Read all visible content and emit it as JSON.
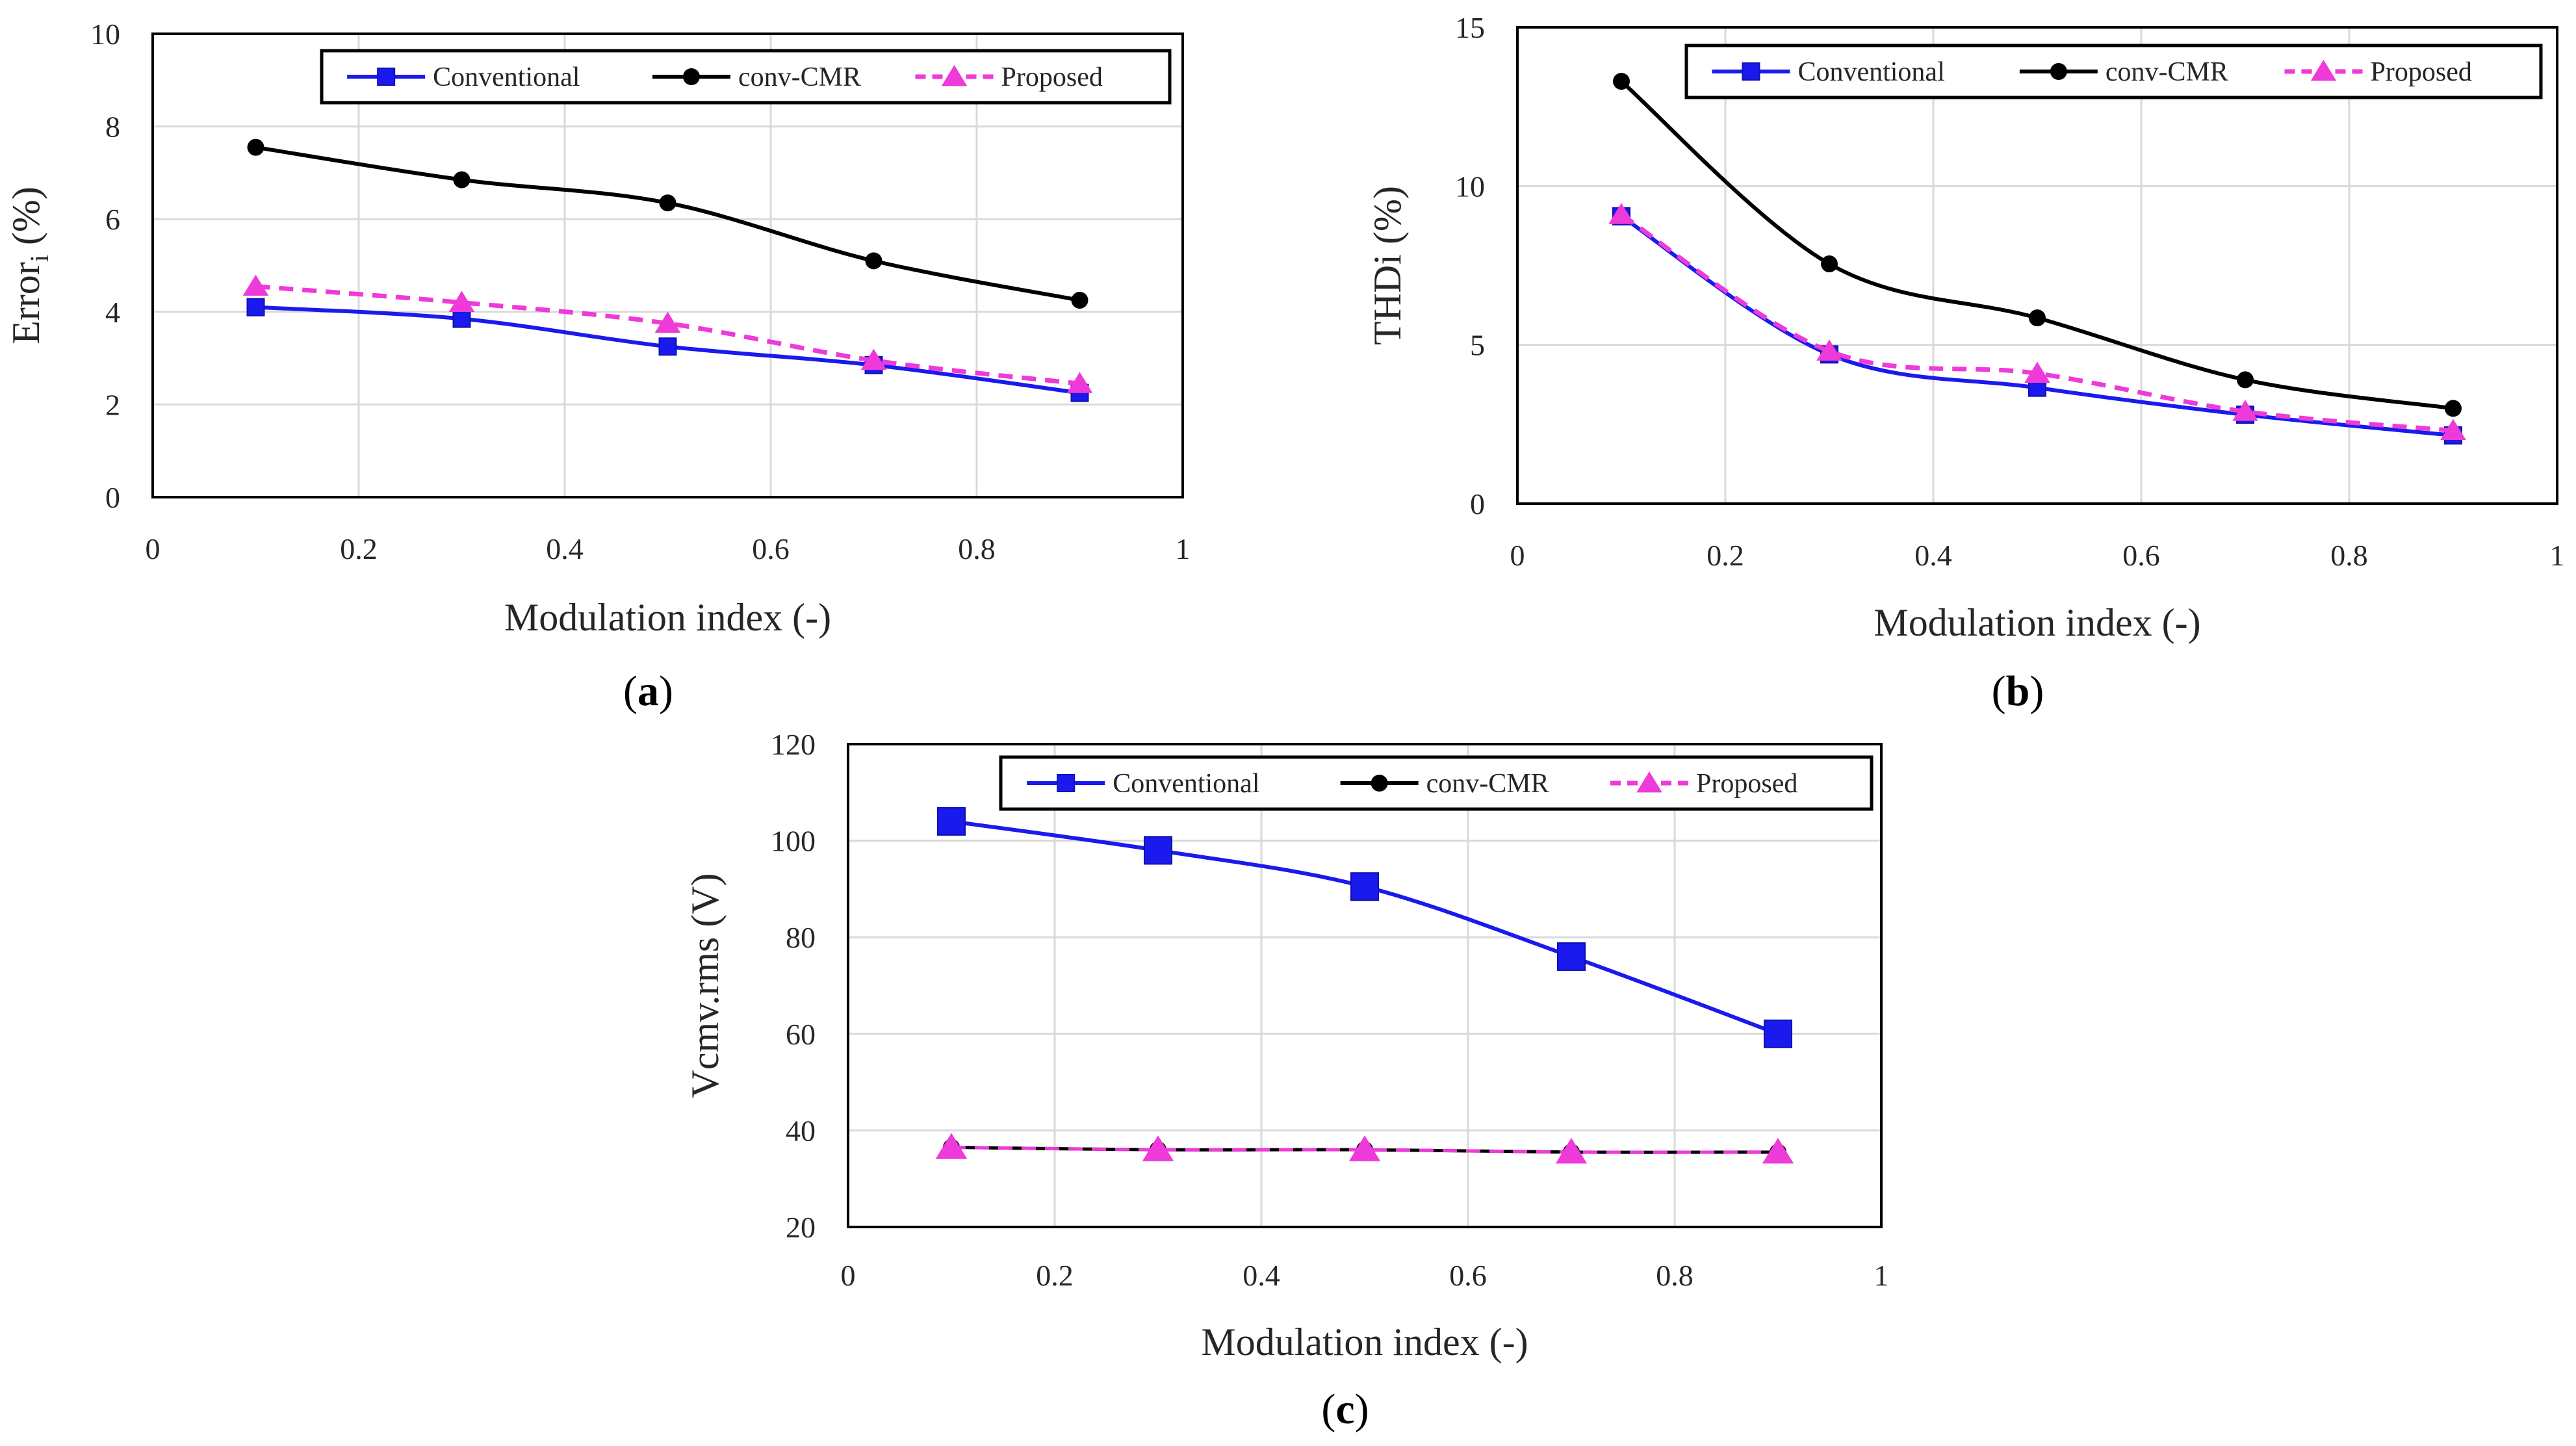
{
  "colors": {
    "conventional": "#1a1aee",
    "conv_cmr": "#000000",
    "proposed": "#ee3ad8",
    "grid": "#d9d9d9",
    "text": "#262626"
  },
  "chart_data": [
    {
      "id": "a",
      "type": "line",
      "panel_label": "a",
      "xlabel": "Modulation index (-)",
      "ylabel_main": "Error",
      "ylabel_sub": "i",
      "ylabel_suffix": " (%)",
      "xlim": [
        0,
        1
      ],
      "ylim": [
        0,
        10
      ],
      "xticks": [
        0,
        0.2,
        0.4,
        0.6,
        0.8,
        1
      ],
      "xtick_labels": [
        "0",
        "0.2",
        "0.4",
        "0.6",
        "0.8",
        "1"
      ],
      "yticks": [
        0,
        2,
        4,
        6,
        8,
        10
      ],
      "ytick_labels": [
        "0",
        "2",
        "4",
        "6",
        "8",
        "10"
      ],
      "grid": true,
      "legend_position": "top-right",
      "series": [
        {
          "name": "Conventional",
          "style": "conventional",
          "x": [
            0.1,
            0.3,
            0.5,
            0.7,
            0.9
          ],
          "y": [
            4.1,
            3.85,
            3.25,
            2.85,
            2.25
          ]
        },
        {
          "name": "conv-CMR",
          "style": "conv_cmr",
          "x": [
            0.1,
            0.3,
            0.5,
            0.7,
            0.9
          ],
          "y": [
            7.55,
            6.85,
            6.35,
            5.1,
            4.25
          ]
        },
        {
          "name": "Proposed",
          "style": "proposed",
          "x": [
            0.1,
            0.3,
            0.5,
            0.7,
            0.9
          ],
          "y": [
            4.55,
            4.2,
            3.75,
            2.95,
            2.45
          ]
        }
      ]
    },
    {
      "id": "b",
      "type": "line",
      "panel_label": "b",
      "xlabel": "Modulation index (-)",
      "ylabel_main": "THDi (%)",
      "ylabel_sub": "",
      "ylabel_suffix": "",
      "xlim": [
        0,
        1
      ],
      "ylim": [
        0,
        15
      ],
      "xticks": [
        0,
        0.2,
        0.4,
        0.6,
        0.8,
        1
      ],
      "xtick_labels": [
        "0",
        "0.2",
        "0.4",
        "0.6",
        "0.8",
        "1"
      ],
      "yticks": [
        0,
        5,
        10,
        15
      ],
      "ytick_labels": [
        "0",
        "5",
        "10",
        "15"
      ],
      "grid": true,
      "legend_position": "top-right",
      "series": [
        {
          "name": "Conventional",
          "style": "conventional",
          "x": [
            0.1,
            0.3,
            0.5,
            0.7,
            0.9
          ],
          "y": [
            9.05,
            4.7,
            3.65,
            2.8,
            2.15
          ]
        },
        {
          "name": "conv-CMR",
          "style": "conv_cmr",
          "x": [
            0.1,
            0.3,
            0.5,
            0.7,
            0.9
          ],
          "y": [
            13.3,
            7.55,
            5.85,
            3.9,
            3.0
          ]
        },
        {
          "name": "Proposed",
          "style": "proposed",
          "x": [
            0.1,
            0.3,
            0.5,
            0.7,
            0.9
          ],
          "y": [
            9.1,
            4.8,
            4.1,
            2.9,
            2.3
          ]
        }
      ]
    },
    {
      "id": "c",
      "type": "line",
      "panel_label": "c",
      "xlabel": "Modulation index (-)",
      "ylabel_main": "Vcmv.rms (V)",
      "ylabel_sub": "",
      "ylabel_suffix": "",
      "xlim": [
        0,
        1
      ],
      "ylim": [
        20,
        120
      ],
      "xticks": [
        0,
        0.2,
        0.4,
        0.6,
        0.8,
        1
      ],
      "xtick_labels": [
        "0",
        "0.2",
        "0.4",
        "0.6",
        "0.8",
        "1"
      ],
      "yticks": [
        20,
        40,
        60,
        80,
        100,
        120
      ],
      "ytick_labels": [
        "20",
        "40",
        "60",
        "80",
        "100",
        "120"
      ],
      "grid": true,
      "legend_position": "top-right",
      "series": [
        {
          "name": "Conventional",
          "style": "conventional",
          "x": [
            0.1,
            0.3,
            0.5,
            0.7,
            0.9
          ],
          "y": [
            104,
            98,
            90.5,
            76,
            60
          ]
        },
        {
          "name": "conv-CMR",
          "style": "conv_cmr",
          "x": [
            0.1,
            0.3,
            0.5,
            0.7,
            0.9
          ],
          "y": [
            36.5,
            36,
            36,
            35.5,
            35.5
          ]
        },
        {
          "name": "Proposed",
          "style": "proposed",
          "x": [
            0.1,
            0.3,
            0.5,
            0.7,
            0.9
          ],
          "y": [
            36.5,
            36,
            36,
            35.5,
            35.5
          ]
        }
      ]
    }
  ]
}
